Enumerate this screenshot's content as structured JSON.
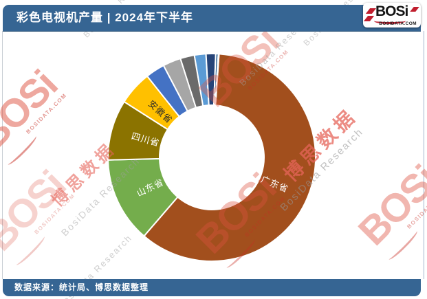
{
  "header": {
    "title": "彩色电视机产量 | 2024年下半年"
  },
  "logo": {
    "brand": "BOSi",
    "domain": "BOSIDATA.COM"
  },
  "footer": {
    "source": "数据来源：统计局、博思数据整理"
  },
  "watermark": {
    "brand": "BOSi",
    "domain": "BOSIDATA.COM",
    "brand_cn": "博思数据",
    "research": "BosiData Research"
  },
  "colors": {
    "bar_blue": "#366593",
    "logo_red": "#C01E2E",
    "watermark_red": "#DE5240",
    "watermark_gray": "#A0A0A0"
  },
  "chart_data": {
    "type": "pie",
    "subtype": "donut",
    "title": "彩色电视机产量 | 2024年下半年",
    "legend": "none",
    "grid": false,
    "data_labels": "category names only; numeric values not shown in image",
    "start_angle_deg": 4,
    "hole_ratio": 0.5,
    "slices": [
      {
        "label": "广东省",
        "value_pct": 60.2,
        "color": "#A24F1D",
        "label_color": "#FFFFFF",
        "label_shown": true
      },
      {
        "label": "山东省",
        "value_pct": 13.3,
        "color": "#74AD4C",
        "label_color": "#FFFFFF",
        "label_shown": true
      },
      {
        "label": "四川省",
        "value_pct": 9.4,
        "color": "#8B7300",
        "label_color": "#FFFFFF",
        "label_shown": true
      },
      {
        "label": "安徽省",
        "value_pct": 5.3,
        "color": "#FFC000",
        "label_color": "#2A2A2A",
        "label_shown": true
      },
      {
        "label": "",
        "value_pct": 3.0,
        "color": "#4472C4",
        "label_shown": false
      },
      {
        "label": "",
        "value_pct": 2.8,
        "color": "#A6A6A6",
        "label_shown": false
      },
      {
        "label": "",
        "value_pct": 2.2,
        "color": "#6A6A6A",
        "label_shown": false
      },
      {
        "label": "",
        "value_pct": 1.8,
        "color": "#5B9BD5",
        "label_shown": false
      },
      {
        "label": "",
        "value_pct": 1.5,
        "color": "#264478",
        "label_shown": false
      },
      {
        "label": "",
        "value_pct": 0.4,
        "color": "#255E91",
        "label_shown": false
      },
      {
        "label": "",
        "value_pct": 0.1,
        "color": "#636363",
        "label_shown": false
      }
    ]
  }
}
